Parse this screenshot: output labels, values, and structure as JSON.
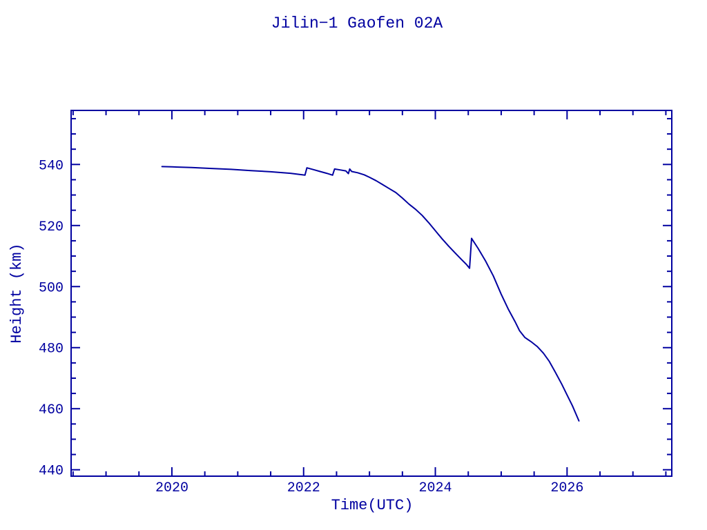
{
  "page": {
    "background": "#ffffff"
  },
  "chart_data": {
    "type": "line",
    "title": "Jilin−1 Gaofen 02A",
    "xlabel": "Time(UTC)",
    "ylabel": "Height (km)",
    "line_color": "#0000A0",
    "axis_color": "#0000A0",
    "text_color": "#0000A0",
    "background_color": "#ffffff",
    "grid": false,
    "legend": null,
    "x_range": [
      2018.47,
      2027.59
    ],
    "y_range": [
      437.9,
      557.7
    ],
    "x_major_ticks": [
      2020,
      2022,
      2024,
      2026
    ],
    "x_tick_labels": [
      "2020",
      "2022",
      "2024",
      "2026"
    ],
    "x_minor_step": 0.5,
    "y_major_ticks": [
      440,
      460,
      480,
      500,
      520,
      540
    ],
    "y_tick_labels": [
      "440",
      "460",
      "480",
      "500",
      "520",
      "540"
    ],
    "y_minor_step": 5,
    "series": [
      {
        "name": "orbit-height-km",
        "points": [
          [
            2019.85,
            539.3
          ],
          [
            2020.0,
            539.2
          ],
          [
            2020.3,
            539.0
          ],
          [
            2020.6,
            538.7
          ],
          [
            2020.9,
            538.4
          ],
          [
            2021.2,
            538.0
          ],
          [
            2021.5,
            537.6
          ],
          [
            2021.8,
            537.1
          ],
          [
            2022.02,
            536.5
          ],
          [
            2022.05,
            538.9
          ],
          [
            2022.15,
            538.3
          ],
          [
            2022.25,
            537.7
          ],
          [
            2022.35,
            537.1
          ],
          [
            2022.44,
            536.5
          ],
          [
            2022.47,
            538.5
          ],
          [
            2022.56,
            538.2
          ],
          [
            2022.64,
            537.9
          ],
          [
            2022.68,
            537.0
          ],
          [
            2022.7,
            538.5
          ],
          [
            2022.73,
            537.7
          ],
          [
            2022.82,
            537.3
          ],
          [
            2022.92,
            536.6
          ],
          [
            2023.0,
            535.8
          ],
          [
            2023.1,
            534.7
          ],
          [
            2023.2,
            533.4
          ],
          [
            2023.3,
            532.1
          ],
          [
            2023.4,
            530.8
          ],
          [
            2023.5,
            529.0
          ],
          [
            2023.6,
            527.0
          ],
          [
            2023.7,
            525.3
          ],
          [
            2023.8,
            523.3
          ],
          [
            2023.9,
            520.9
          ],
          [
            2024.0,
            518.3
          ],
          [
            2024.1,
            515.7
          ],
          [
            2024.2,
            513.3
          ],
          [
            2024.3,
            511.0
          ],
          [
            2024.4,
            508.8
          ],
          [
            2024.47,
            507.3
          ],
          [
            2024.52,
            506.0
          ],
          [
            2024.55,
            515.8
          ],
          [
            2024.65,
            512.5
          ],
          [
            2024.76,
            508.5
          ],
          [
            2024.88,
            503.5
          ],
          [
            2025.0,
            497.5
          ],
          [
            2025.11,
            492.5
          ],
          [
            2025.21,
            488.5
          ],
          [
            2025.28,
            485.5
          ],
          [
            2025.36,
            483.3
          ],
          [
            2025.45,
            482.0
          ],
          [
            2025.55,
            480.3
          ],
          [
            2025.64,
            478.2
          ],
          [
            2025.73,
            475.5
          ],
          [
            2025.82,
            472.0
          ],
          [
            2025.92,
            468.0
          ],
          [
            2026.0,
            464.5
          ],
          [
            2026.08,
            461.0
          ],
          [
            2026.18,
            456.0
          ]
        ]
      }
    ]
  }
}
